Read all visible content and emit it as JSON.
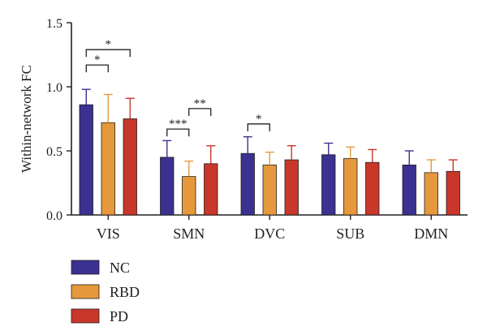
{
  "chart_data": {
    "type": "bar",
    "title": "",
    "xlabel": "",
    "ylabel": "Within-network FC",
    "ylim": [
      0,
      1.5
    ],
    "yticks": [
      "0.0",
      "0.5",
      "1.0",
      "1.5"
    ],
    "grid": false,
    "legend_position": "bottom-left",
    "categories": [
      "VIS",
      "SMN",
      "DVC",
      "SUB",
      "DMN"
    ],
    "series": [
      {
        "name": "NC",
        "color": "#3a3190",
        "values": [
          0.86,
          0.45,
          0.48,
          0.47,
          0.39
        ],
        "errors": [
          0.12,
          0.13,
          0.13,
          0.09,
          0.11
        ]
      },
      {
        "name": "RBD",
        "color": "#e5993c",
        "values": [
          0.72,
          0.3,
          0.39,
          0.44,
          0.33
        ],
        "errors": [
          0.22,
          0.12,
          0.1,
          0.09,
          0.1
        ]
      },
      {
        "name": "PD",
        "color": "#c8372a",
        "values": [
          0.75,
          0.4,
          0.43,
          0.41,
          0.34
        ],
        "errors": [
          0.16,
          0.14,
          0.11,
          0.1,
          0.09
        ]
      }
    ],
    "significance": [
      {
        "category": "VIS",
        "from": "NC",
        "to": "RBD",
        "label": "*",
        "level": 1.17
      },
      {
        "category": "VIS",
        "from": "NC",
        "to": "PD",
        "label": "*",
        "level": 1.29
      },
      {
        "category": "SMN",
        "from": "NC",
        "to": "RBD",
        "label": "***",
        "level": 0.67
      },
      {
        "category": "SMN",
        "from": "RBD",
        "to": "PD",
        "label": "**",
        "level": 0.83
      },
      {
        "category": "DVC",
        "from": "NC",
        "to": "RBD",
        "label": "*",
        "level": 0.71
      }
    ]
  }
}
